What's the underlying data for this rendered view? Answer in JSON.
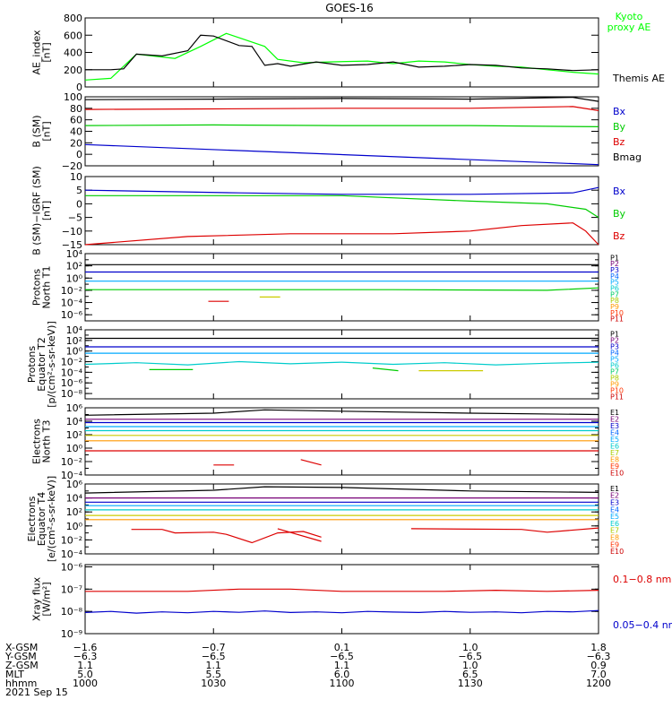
{
  "title": "GOES-16",
  "chart_data": [
    {
      "type": "line",
      "panel": "ae",
      "ylabel_lines": [
        "AE_index",
        "[nT]"
      ],
      "ylim": [
        0,
        800
      ],
      "y_ticks": [
        "800",
        "600",
        "400",
        "200",
        "0"
      ],
      "y_tick_values": [
        800,
        600,
        400,
        200,
        0
      ],
      "series": [
        {
          "name": "Kyoto",
          "name2": "proxy AE",
          "color": "#00ff00",
          "x": [
            0,
            10,
            20,
            35,
            45,
            55,
            70,
            75,
            85,
            95,
            110,
            120,
            130,
            140,
            150,
            160,
            170,
            180,
            190,
            200
          ],
          "values": [
            80,
            100,
            380,
            330,
            470,
            620,
            470,
            320,
            280,
            290,
            300,
            270,
            300,
            290,
            260,
            240,
            230,
            200,
            170,
            150
          ]
        },
        {
          "name": "Themis AE",
          "color": "#000000",
          "x": [
            0,
            10,
            15,
            20,
            30,
            40,
            45,
            50,
            60,
            65,
            70,
            75,
            80,
            90,
            100,
            110,
            120,
            130,
            140,
            150,
            160,
            170,
            180,
            190,
            200
          ],
          "values": [
            200,
            200,
            210,
            380,
            360,
            420,
            600,
            590,
            480,
            470,
            250,
            270,
            240,
            290,
            250,
            260,
            290,
            230,
            240,
            260,
            250,
            220,
            210,
            190,
            200
          ]
        }
      ]
    },
    {
      "type": "line",
      "panel": "b",
      "ylabel_lines": [
        "B (SM)",
        "[nT]"
      ],
      "ylim": [
        -20,
        100
      ],
      "y_ticks": [
        "100",
        "80",
        "60",
        "40",
        "20",
        "0",
        "−20"
      ],
      "y_tick_values": [
        100,
        80,
        60,
        40,
        20,
        0,
        -20
      ],
      "series": [
        {
          "name": "Bx",
          "color": "#0000cc",
          "x": [
            0,
            200
          ],
          "values": [
            17,
            -18
          ]
        },
        {
          "name": "By",
          "color": "#00cc00",
          "x": [
            0,
            50,
            100,
            150,
            200
          ],
          "values": [
            50,
            51,
            50,
            50,
            48
          ]
        },
        {
          "name": "Bz",
          "color": "#dd0000",
          "x": [
            0,
            50,
            100,
            150,
            190,
            200
          ],
          "values": [
            78,
            79,
            80,
            80,
            83,
            76
          ]
        },
        {
          "name": "Bmag",
          "color": "#000000",
          "x": [
            0,
            50,
            100,
            150,
            190,
            200
          ],
          "values": [
            95,
            96,
            97,
            96,
            99,
            92
          ]
        }
      ]
    },
    {
      "type": "line",
      "panel": "bigrf",
      "ylabel_lines": [
        "B (SM)−IGRF (SM)",
        "[nT]"
      ],
      "ylim": [
        -15,
        10
      ],
      "y_ticks": [
        "10",
        "5",
        "0",
        "−5",
        "−10",
        "−15"
      ],
      "y_tick_values": [
        10,
        5,
        0,
        -5,
        -10,
        -15
      ],
      "series": [
        {
          "name": "Bx",
          "color": "#0000cc",
          "x": [
            0,
            60,
            100,
            150,
            190,
            200
          ],
          "values": [
            5,
            4,
            3.5,
            3.5,
            4,
            6
          ]
        },
        {
          "name": "By",
          "color": "#00cc00",
          "x": [
            0,
            50,
            100,
            150,
            180,
            195,
            200
          ],
          "values": [
            3,
            3,
            3,
            1,
            0,
            -2,
            -5
          ]
        },
        {
          "name": "Bz",
          "color": "#dd0000",
          "x": [
            0,
            40,
            80,
            120,
            150,
            170,
            190,
            195,
            200
          ],
          "values": [
            -15,
            -12,
            -11,
            -11,
            -10,
            -8,
            -7,
            -10,
            -15
          ]
        }
      ]
    },
    {
      "type": "line",
      "panel": "p1",
      "ylabel_lines": [
        "Protons",
        "North T1"
      ],
      "ylog": true,
      "ylim_exp": [
        -7,
        4
      ],
      "y_ticks": [
        "10⁴",
        "10²",
        "10⁰",
        "10⁻²",
        "10⁻⁴",
        "10⁻⁶"
      ],
      "y_tick_values": [
        4,
        2,
        0,
        -2,
        -4,
        -6
      ],
      "channels": [
        "P1",
        "P2",
        "P3",
        "P4",
        "P5",
        "P6",
        "P7",
        "P8",
        "P9",
        "P10",
        "P11"
      ],
      "channel_colors": [
        "#000000",
        "#770077",
        "#0000cc",
        "#0066ff",
        "#00aaff",
        "#00cccc",
        "#00cc66",
        "#aacc00",
        "#ff9900",
        "#ff3300",
        "#cc0000"
      ],
      "series": [
        {
          "color": "#000000",
          "x": [
            0,
            200
          ],
          "values": [
            2.2,
            2.2
          ]
        },
        {
          "color": "#0000cc",
          "x": [
            0,
            200
          ],
          "values": [
            1.0,
            1.0
          ]
        },
        {
          "color": "#00aaff",
          "x": [
            0,
            200
          ],
          "values": [
            -0.5,
            -0.5
          ]
        },
        {
          "color": "#00cc00",
          "x": [
            0,
            120,
            180,
            200
          ],
          "values": [
            -1.9,
            -1.9,
            -2.0,
            -1.6
          ]
        },
        {
          "color": "#cccc00",
          "x": [
            68,
            76
          ],
          "values": [
            -3.1,
            -3.1
          ]
        },
        {
          "color": "#dd0000",
          "x": [
            48,
            56
          ],
          "values": [
            -3.8,
            -3.8
          ]
        }
      ]
    },
    {
      "type": "line",
      "panel": "p2",
      "ylabel_lines": [
        "Protons",
        "Equator T2",
        "[p/(cm²-s-sr-keV)]"
      ],
      "ylog": true,
      "ylim_exp": [
        -9,
        4
      ],
      "y_ticks": [
        "10⁴",
        "10²",
        "10⁰",
        "10⁻²",
        "10⁻⁴",
        "10⁻⁶",
        "10⁻⁸"
      ],
      "y_tick_values": [
        4,
        2,
        0,
        -2,
        -4,
        -6,
        -8
      ],
      "channels": [
        "P1",
        "P2",
        "P3",
        "P4",
        "P5",
        "P6",
        "P7",
        "P8",
        "P9",
        "P10",
        "P11"
      ],
      "channel_colors": [
        "#000000",
        "#770077",
        "#0000cc",
        "#0066ff",
        "#00aaff",
        "#00cccc",
        "#00cc66",
        "#aacc00",
        "#ff9900",
        "#ff3300",
        "#cc0000"
      ],
      "series": [
        {
          "color": "#000000",
          "x": [
            0,
            200
          ],
          "values": [
            2.4,
            2.4
          ]
        },
        {
          "color": "#0000cc",
          "x": [
            0,
            200
          ],
          "values": [
            0.8,
            0.8
          ]
        },
        {
          "color": "#00aaff",
          "x": [
            0,
            200
          ],
          "values": [
            -0.4,
            -0.4
          ]
        },
        {
          "color": "#00cccc",
          "x": [
            0,
            20,
            40,
            60,
            80,
            100,
            120,
            140,
            160,
            180,
            200
          ],
          "values": [
            -2.5,
            -2.2,
            -2.6,
            -2.0,
            -2.4,
            -2.1,
            -2.5,
            -2.2,
            -2.6,
            -2.3,
            -2.1
          ]
        },
        {
          "color": "#00cc00",
          "x": [
            25,
            42
          ],
          "values": [
            -3.5,
            -3.5
          ]
        },
        {
          "color": "#00cc00",
          "x": [
            112,
            122
          ],
          "values": [
            -3.2,
            -3.7
          ]
        },
        {
          "color": "#cccc00",
          "x": [
            130,
            155
          ],
          "values": [
            -3.7,
            -3.7
          ]
        }
      ]
    },
    {
      "type": "line",
      "panel": "e1",
      "ylabel_lines": [
        "Electrons",
        "North T3"
      ],
      "ylog": true,
      "ylim_exp": [
        -4,
        6
      ],
      "y_ticks": [
        "10⁶",
        "10⁴",
        "10²",
        "10⁰",
        "10⁻²",
        "10⁻⁴"
      ],
      "y_tick_values": [
        6,
        4,
        2,
        0,
        -2,
        -4
      ],
      "channels": [
        "E1",
        "E2",
        "E3",
        "E4",
        "E5",
        "E6",
        "E7",
        "E8",
        "E9",
        "E10"
      ],
      "channel_colors": [
        "#000000",
        "#770077",
        "#0000cc",
        "#0066ff",
        "#00aaff",
        "#00cccc",
        "#aacc00",
        "#ff9900",
        "#ff3300",
        "#cc0000"
      ],
      "series": [
        {
          "color": "#000000",
          "x": [
            0,
            50,
            70,
            100,
            150,
            200
          ],
          "values": [
            4.9,
            5.2,
            5.7,
            5.5,
            5.2,
            5.0
          ]
        },
        {
          "color": "#770077",
          "x": [
            0,
            200
          ],
          "values": [
            4.3,
            4.3
          ]
        },
        {
          "color": "#0000cc",
          "x": [
            0,
            200
          ],
          "values": [
            3.8,
            3.8
          ]
        },
        {
          "color": "#00aaff",
          "x": [
            0,
            200
          ],
          "values": [
            3.2,
            3.2
          ]
        },
        {
          "color": "#00cccc",
          "x": [
            0,
            200
          ],
          "values": [
            2.6,
            2.6
          ]
        },
        {
          "color": "#cccc00",
          "x": [
            0,
            200
          ],
          "values": [
            1.9,
            1.9
          ]
        },
        {
          "color": "#ff9900",
          "x": [
            0,
            200
          ],
          "values": [
            1.1,
            1.1
          ]
        },
        {
          "color": "#dd0000",
          "x": [
            0,
            200
          ],
          "values": [
            -0.4,
            -0.4
          ]
        },
        {
          "color": "#dd0000",
          "x": [
            50,
            58
          ],
          "values": [
            -2.5,
            -2.5
          ]
        },
        {
          "color": "#dd0000",
          "x": [
            84,
            92
          ],
          "values": [
            -1.7,
            -2.5
          ]
        }
      ]
    },
    {
      "type": "line",
      "panel": "e2",
      "ylabel_lines": [
        "Electrons",
        "Equator T4",
        "[e/(cm²-s-sr-keV)]"
      ],
      "ylog": true,
      "ylim_exp": [
        -4,
        6
      ],
      "y_ticks": [
        "10⁶",
        "10⁴",
        "10²",
        "10⁰",
        "10⁻²",
        "10⁻⁴"
      ],
      "y_tick_values": [
        6,
        4,
        2,
        0,
        -2,
        -4
      ],
      "channels": [
        "E1",
        "E2",
        "E3",
        "E4",
        "E5",
        "E6",
        "E7",
        "E8",
        "E9",
        "E10"
      ],
      "channel_colors": [
        "#000000",
        "#770077",
        "#0000cc",
        "#0066ff",
        "#00aaff",
        "#00cccc",
        "#aacc00",
        "#ff9900",
        "#ff3300",
        "#cc0000"
      ],
      "series": [
        {
          "color": "#000000",
          "x": [
            0,
            50,
            70,
            100,
            150,
            200
          ],
          "values": [
            4.7,
            5.1,
            5.6,
            5.5,
            5.0,
            4.8
          ]
        },
        {
          "color": "#770077",
          "x": [
            0,
            200
          ],
          "values": [
            4.0,
            4.0
          ]
        },
        {
          "color": "#0000cc",
          "x": [
            0,
            200
          ],
          "values": [
            3.4,
            3.4
          ]
        },
        {
          "color": "#00aaff",
          "x": [
            0,
            200
          ],
          "values": [
            2.9,
            2.9
          ]
        },
        {
          "color": "#00cccc",
          "x": [
            0,
            200
          ],
          "values": [
            2.3,
            2.3
          ]
        },
        {
          "color": "#cccc00",
          "x": [
            0,
            200
          ],
          "values": [
            1.5,
            1.5
          ]
        },
        {
          "color": "#ff9900",
          "x": [
            0,
            200
          ],
          "values": [
            0.9,
            0.9
          ]
        },
        {
          "color": "#dd0000",
          "x": [
            18,
            30,
            35,
            50,
            55,
            65,
            75,
            85,
            92
          ],
          "values": [
            -0.5,
            -0.5,
            -1.0,
            -0.9,
            -1.2,
            -2.4,
            -1.0,
            -0.8,
            -1.6
          ]
        },
        {
          "color": "#dd0000",
          "x": [
            75,
            92
          ],
          "values": [
            -0.4,
            -2.2
          ]
        },
        {
          "color": "#dd0000",
          "x": [
            127,
            170,
            180,
            200
          ],
          "values": [
            -0.4,
            -0.5,
            -0.9,
            -0.3
          ]
        }
      ]
    },
    {
      "type": "line",
      "panel": "xray",
      "ylabel_lines": [
        "Xray flux",
        "[W/m²]"
      ],
      "ylog": true,
      "ylim_exp": [
        -9,
        -5.9
      ],
      "y_ticks": [
        "10⁻⁶",
        "10⁻⁷",
        "10⁻⁸",
        "10⁻⁹"
      ],
      "y_tick_values": [
        -6,
        -7,
        -8,
        -9
      ],
      "series": [
        {
          "name": "0.1−0.8 nm",
          "color": "#dd0000",
          "x": [
            0,
            40,
            60,
            80,
            100,
            140,
            160,
            180,
            200
          ],
          "values": [
            -7.1,
            -7.1,
            -7.0,
            -7.0,
            -7.1,
            -7.1,
            -7.05,
            -7.1,
            -7.05
          ]
        },
        {
          "name": "0.05−0.4 nm",
          "color": "#0000cc",
          "x": [
            0,
            10,
            20,
            30,
            40,
            50,
            60,
            70,
            80,
            90,
            100,
            110,
            120,
            130,
            140,
            150,
            160,
            170,
            180,
            190,
            200
          ],
          "values": [
            -8.05,
            -8.0,
            -8.08,
            -8.02,
            -8.06,
            -8.0,
            -8.04,
            -7.98,
            -8.05,
            -8.02,
            -8.06,
            -8.0,
            -8.03,
            -8.05,
            -8.0,
            -8.04,
            -8.02,
            -8.06,
            -8.0,
            -8.02,
            -7.96
          ]
        }
      ]
    }
  ],
  "xaxis": {
    "x_values": [
      0,
      50,
      100,
      150,
      200
    ],
    "rows": [
      {
        "label": "X-GSM",
        "values": [
          "−1.6",
          "−0.7",
          "0.1",
          "1.0",
          "1.8"
        ]
      },
      {
        "label": "Y-GSM",
        "values": [
          "−6.3",
          "−6.5",
          "−6.5",
          "−6.5",
          "−6.3"
        ]
      },
      {
        "label": "Z-GSM",
        "values": [
          "1.1",
          "1.1",
          "1.1",
          "1.0",
          "0.9"
        ]
      },
      {
        "label": "MLT",
        "values": [
          "5.0",
          "5.5",
          "6.0",
          "6.5",
          "7.0"
        ]
      },
      {
        "label": "hhmm",
        "values": [
          "1000",
          "1030",
          "1100",
          "1130",
          "1200"
        ]
      }
    ],
    "date": "2021 Sep 15"
  }
}
